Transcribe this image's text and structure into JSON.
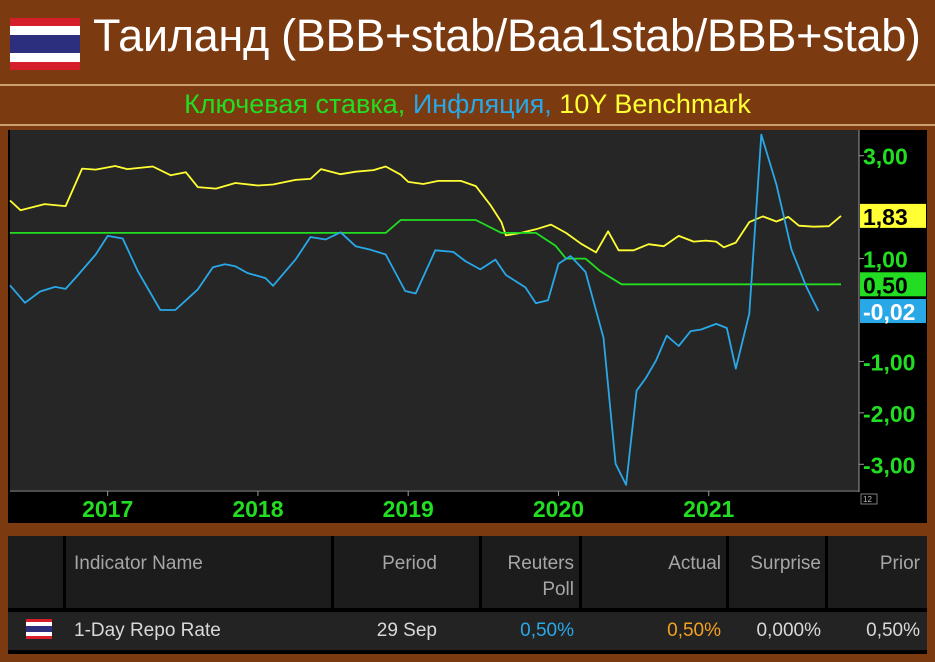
{
  "header": {
    "title": "Таиланд (BBB+stab/Baa1stab/BBB+stab)",
    "subtitle_parts": [
      {
        "text": "Ключевая ставка, ",
        "color": "#22dd22"
      },
      {
        "text": "Инфляция, ",
        "color": "#29a8e8"
      },
      {
        "text": "10Y Benchmark",
        "color": "#ffff33"
      }
    ]
  },
  "chart_data": {
    "type": "line",
    "x_ticks": [
      "2017",
      "2018",
      "2019",
      "2020",
      "2021"
    ],
    "y_ticks": [
      "3,00",
      "1,00",
      "-1,00",
      "-2,00",
      "-3,00"
    ],
    "ylim": [
      -3.5,
      3.5
    ],
    "xlim": [
      2016.35,
      2022.0
    ],
    "series": [
      {
        "color": "#ffff33",
        "last_label": "1,83",
        "points": [
          [
            2016.35,
            2.13
          ],
          [
            2016.42,
            1.94
          ],
          [
            2016.58,
            2.06
          ],
          [
            2016.72,
            2.02
          ],
          [
            2016.83,
            2.75
          ],
          [
            2016.92,
            2.73
          ],
          [
            2017.05,
            2.8
          ],
          [
            2017.13,
            2.74
          ],
          [
            2017.3,
            2.79
          ],
          [
            2017.42,
            2.62
          ],
          [
            2017.52,
            2.68
          ],
          [
            2017.6,
            2.39
          ],
          [
            2017.72,
            2.36
          ],
          [
            2017.85,
            2.47
          ],
          [
            2018.0,
            2.42
          ],
          [
            2018.1,
            2.44
          ],
          [
            2018.25,
            2.53
          ],
          [
            2018.35,
            2.55
          ],
          [
            2018.42,
            2.74
          ],
          [
            2018.55,
            2.64
          ],
          [
            2018.65,
            2.69
          ],
          [
            2018.77,
            2.72
          ],
          [
            2018.85,
            2.79
          ],
          [
            2018.95,
            2.63
          ],
          [
            2019.0,
            2.49
          ],
          [
            2019.1,
            2.45
          ],
          [
            2019.2,
            2.51
          ],
          [
            2019.35,
            2.51
          ],
          [
            2019.45,
            2.41
          ],
          [
            2019.55,
            2.03
          ],
          [
            2019.62,
            1.71
          ],
          [
            2019.65,
            1.45
          ],
          [
            2019.75,
            1.5
          ],
          [
            2019.85,
            1.57
          ],
          [
            2019.95,
            1.66
          ],
          [
            2020.05,
            1.5
          ],
          [
            2020.15,
            1.29
          ],
          [
            2020.25,
            1.12
          ],
          [
            2020.33,
            1.53
          ],
          [
            2020.4,
            1.16
          ],
          [
            2020.5,
            1.16
          ],
          [
            2020.6,
            1.28
          ],
          [
            2020.7,
            1.24
          ],
          [
            2020.8,
            1.44
          ],
          [
            2020.9,
            1.33
          ],
          [
            2020.98,
            1.35
          ],
          [
            2021.05,
            1.33
          ],
          [
            2021.1,
            1.22
          ],
          [
            2021.18,
            1.31
          ],
          [
            2021.27,
            1.71
          ],
          [
            2021.36,
            1.82
          ],
          [
            2021.45,
            1.72
          ],
          [
            2021.53,
            1.81
          ],
          [
            2021.6,
            1.64
          ],
          [
            2021.7,
            1.62
          ],
          [
            2021.8,
            1.63
          ],
          [
            2021.88,
            1.83
          ]
        ]
      },
      {
        "color": "#22dd22",
        "last_label": "0,50",
        "points": [
          [
            2016.35,
            1.5
          ],
          [
            2018.85,
            1.5
          ],
          [
            2018.95,
            1.75
          ],
          [
            2019.45,
            1.75
          ],
          [
            2019.62,
            1.5
          ],
          [
            2019.85,
            1.5
          ],
          [
            2019.98,
            1.25
          ],
          [
            2020.05,
            1.0
          ],
          [
            2020.18,
            1.0
          ],
          [
            2020.28,
            0.75
          ],
          [
            2020.42,
            0.5
          ],
          [
            2021.88,
            0.5
          ]
        ]
      },
      {
        "color": "#29a8e8",
        "last_label": "-0,02",
        "points": [
          [
            2016.35,
            0.48
          ],
          [
            2016.45,
            0.14
          ],
          [
            2016.55,
            0.36
          ],
          [
            2016.65,
            0.45
          ],
          [
            2016.72,
            0.41
          ],
          [
            2016.8,
            0.67
          ],
          [
            2016.92,
            1.08
          ],
          [
            2017.0,
            1.44
          ],
          [
            2017.1,
            1.39
          ],
          [
            2017.2,
            0.76
          ],
          [
            2017.35,
            0.0
          ],
          [
            2017.45,
            0.0
          ],
          [
            2017.6,
            0.4
          ],
          [
            2017.7,
            0.83
          ],
          [
            2017.78,
            0.89
          ],
          [
            2017.85,
            0.85
          ],
          [
            2017.93,
            0.72
          ],
          [
            2018.05,
            0.62
          ],
          [
            2018.1,
            0.47
          ],
          [
            2018.25,
            0.98
          ],
          [
            2018.35,
            1.42
          ],
          [
            2018.45,
            1.37
          ],
          [
            2018.55,
            1.51
          ],
          [
            2018.65,
            1.24
          ],
          [
            2018.75,
            1.17
          ],
          [
            2018.85,
            1.08
          ],
          [
            2018.98,
            0.37
          ],
          [
            2019.05,
            0.32
          ],
          [
            2019.18,
            1.16
          ],
          [
            2019.3,
            1.13
          ],
          [
            2019.38,
            0.95
          ],
          [
            2019.48,
            0.79
          ],
          [
            2019.58,
            0.98
          ],
          [
            2019.65,
            0.68
          ],
          [
            2019.78,
            0.44
          ],
          [
            2019.85,
            0.13
          ],
          [
            2019.93,
            0.19
          ],
          [
            2020.0,
            0.9
          ],
          [
            2020.08,
            1.05
          ],
          [
            2020.18,
            0.74
          ],
          [
            2020.3,
            -0.54
          ],
          [
            2020.38,
            -2.99
          ],
          [
            2020.45,
            -3.4
          ],
          [
            2020.52,
            -1.57
          ],
          [
            2020.58,
            -1.33
          ],
          [
            2020.65,
            -0.98
          ],
          [
            2020.72,
            -0.5
          ],
          [
            2020.8,
            -0.7
          ],
          [
            2020.88,
            -0.41
          ],
          [
            2020.95,
            -0.38
          ],
          [
            2021.05,
            -0.27
          ],
          [
            2021.12,
            -0.35
          ],
          [
            2021.18,
            -1.14
          ],
          [
            2021.27,
            -0.07
          ],
          [
            2021.35,
            3.41
          ],
          [
            2021.45,
            2.44
          ],
          [
            2021.55,
            1.18
          ],
          [
            2021.65,
            0.45
          ],
          [
            2021.73,
            -0.02
          ]
        ]
      }
    ],
    "tag_12": "12"
  },
  "table": {
    "headers": {
      "indicator": "Indicator Name",
      "period": "Period",
      "reuters_l1": "Reuters",
      "reuters_l2": "Poll",
      "actual": "Actual",
      "surprise": "Surprise",
      "prior": "Prior"
    },
    "row": {
      "indicator": "1-Day Repo Rate",
      "period": "29 Sep",
      "reuters": "0,50%",
      "actual": "0,50%",
      "surprise": "0,000%",
      "prior": "0,50%"
    },
    "colors": {
      "reuters": "#29a8e8",
      "actual": "#f4a020"
    }
  }
}
